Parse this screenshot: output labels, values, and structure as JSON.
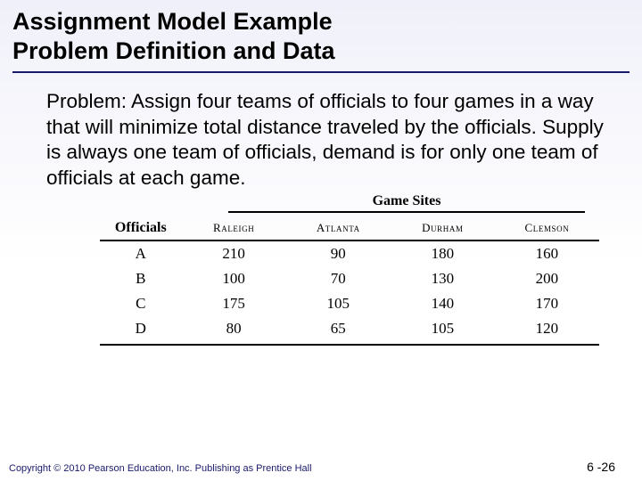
{
  "title": {
    "line1": "Assignment Model Example",
    "line2": "Problem Definition and Data",
    "rule_color": "#1a1a6a"
  },
  "problem": {
    "text": "Problem:  Assign four teams of officials to four games in a way that will minimize total distance traveled by the officials. Supply is always one team of officials, demand is for only one team of officials at each game."
  },
  "table": {
    "super_header": "Game Sites",
    "row_header": "Officials",
    "sites": [
      "Raleigh",
      "Atlanta",
      "Durham",
      "Clemson"
    ],
    "rows": [
      {
        "label": "A",
        "values": [
          210,
          90,
          180,
          160
        ]
      },
      {
        "label": "B",
        "values": [
          100,
          70,
          130,
          200
        ]
      },
      {
        "label": "C",
        "values": [
          175,
          105,
          140,
          170
        ]
      },
      {
        "label": "D",
        "values": [
          80,
          65,
          105,
          120
        ]
      }
    ],
    "font_family": "Georgia, 'Times New Roman', serif",
    "header_fontsize_pt": 16,
    "site_fontsize_pt": 13,
    "cell_fontsize_pt": 17,
    "rule_color": "#000000"
  },
  "footer": {
    "copyright": "Copyright © 2010 Pearson Education, Inc. Publishing as Prentice Hall",
    "page": "6 -26",
    "text_color": "#1a1a6a"
  },
  "background": {
    "gradient_top": "#f0f0fa",
    "gradient_bottom": "#ffffff"
  }
}
